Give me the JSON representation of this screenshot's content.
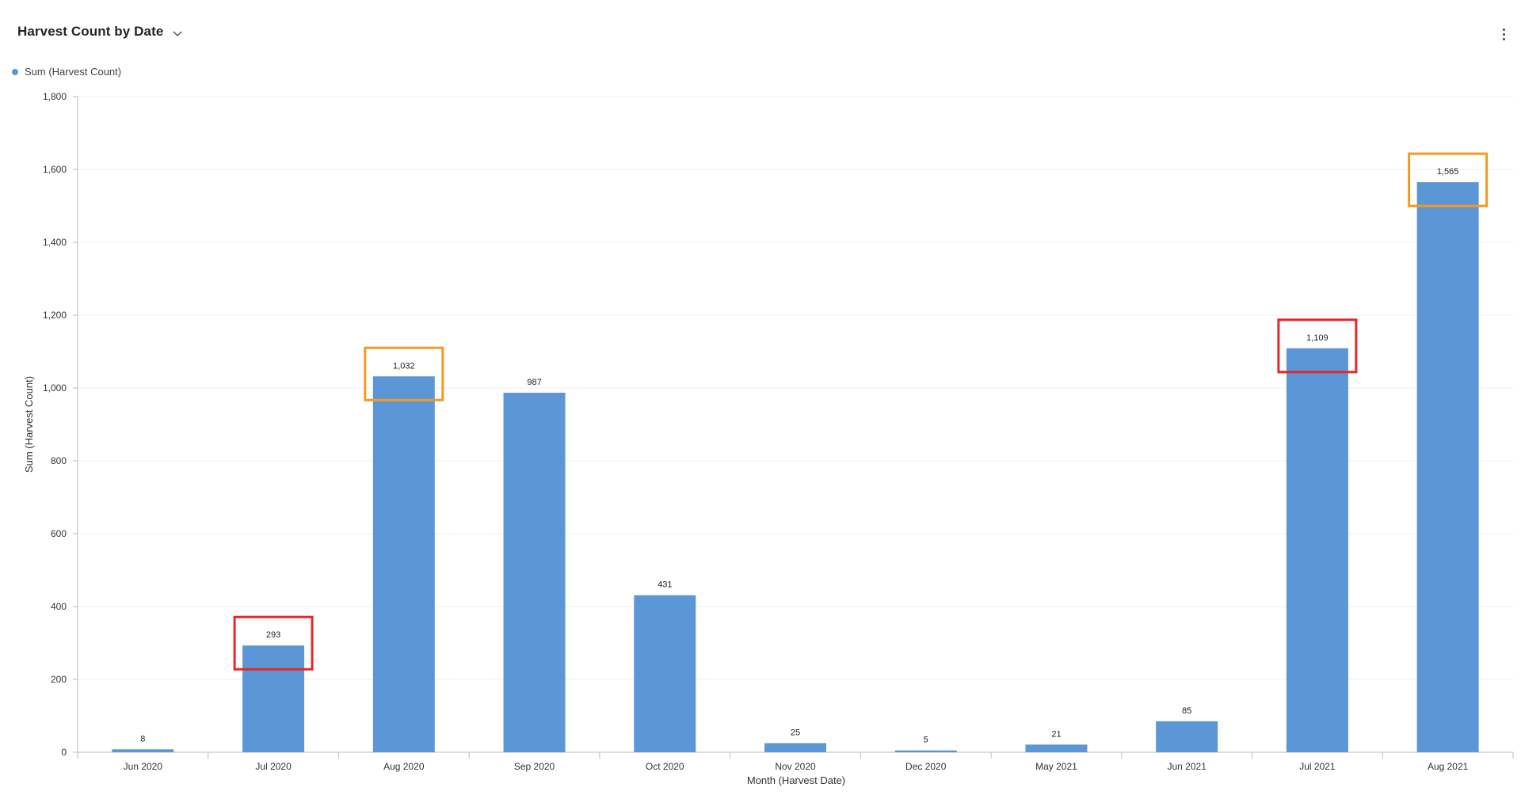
{
  "header": {
    "title": "Harvest Count by Date",
    "chevron_icon": "chevron-down-icon",
    "more_icon": "more-vertical-icon"
  },
  "legend": {
    "label": "Sum (Harvest Count)",
    "color": "#5b97d6"
  },
  "chart_data": {
    "type": "bar",
    "title": "Harvest Count by Date",
    "xlabel": "Month (Harvest Date)",
    "ylabel": "Sum (Harvest Count)",
    "ylim": [
      0,
      1800
    ],
    "yticks": [
      0,
      200,
      400,
      600,
      800,
      1000,
      1200,
      1400,
      1600,
      1800
    ],
    "ytick_labels": [
      "0",
      "200",
      "400",
      "600",
      "800",
      "1,000",
      "1,200",
      "1,400",
      "1,600",
      "1,800"
    ],
    "categories": [
      "Jun 2020",
      "Jul 2020",
      "Aug 2020",
      "Sep 2020",
      "Oct 2020",
      "Nov 2020",
      "Dec 2020",
      "May 2021",
      "Jun 2021",
      "Jul 2021",
      "Aug 2021"
    ],
    "series": [
      {
        "name": "Sum (Harvest Count)",
        "values": [
          8,
          293,
          1032,
          987,
          431,
          25,
          5,
          21,
          85,
          1109,
          1565
        ],
        "labels": [
          "8",
          "293",
          "1,032",
          "987",
          "431",
          "25",
          "5",
          "21",
          "85",
          "1,109",
          "1,565"
        ]
      }
    ],
    "bar_color": "#5b97d6",
    "grid": true,
    "legend_position": "top-left",
    "highlights": [
      {
        "category": "Jul 2020",
        "color": "#e8262a"
      },
      {
        "category": "Aug 2020",
        "color": "#f29a1f"
      },
      {
        "category": "Jul 2021",
        "color": "#e8262a"
      },
      {
        "category": "Aug 2021",
        "color": "#f29a1f"
      }
    ]
  }
}
